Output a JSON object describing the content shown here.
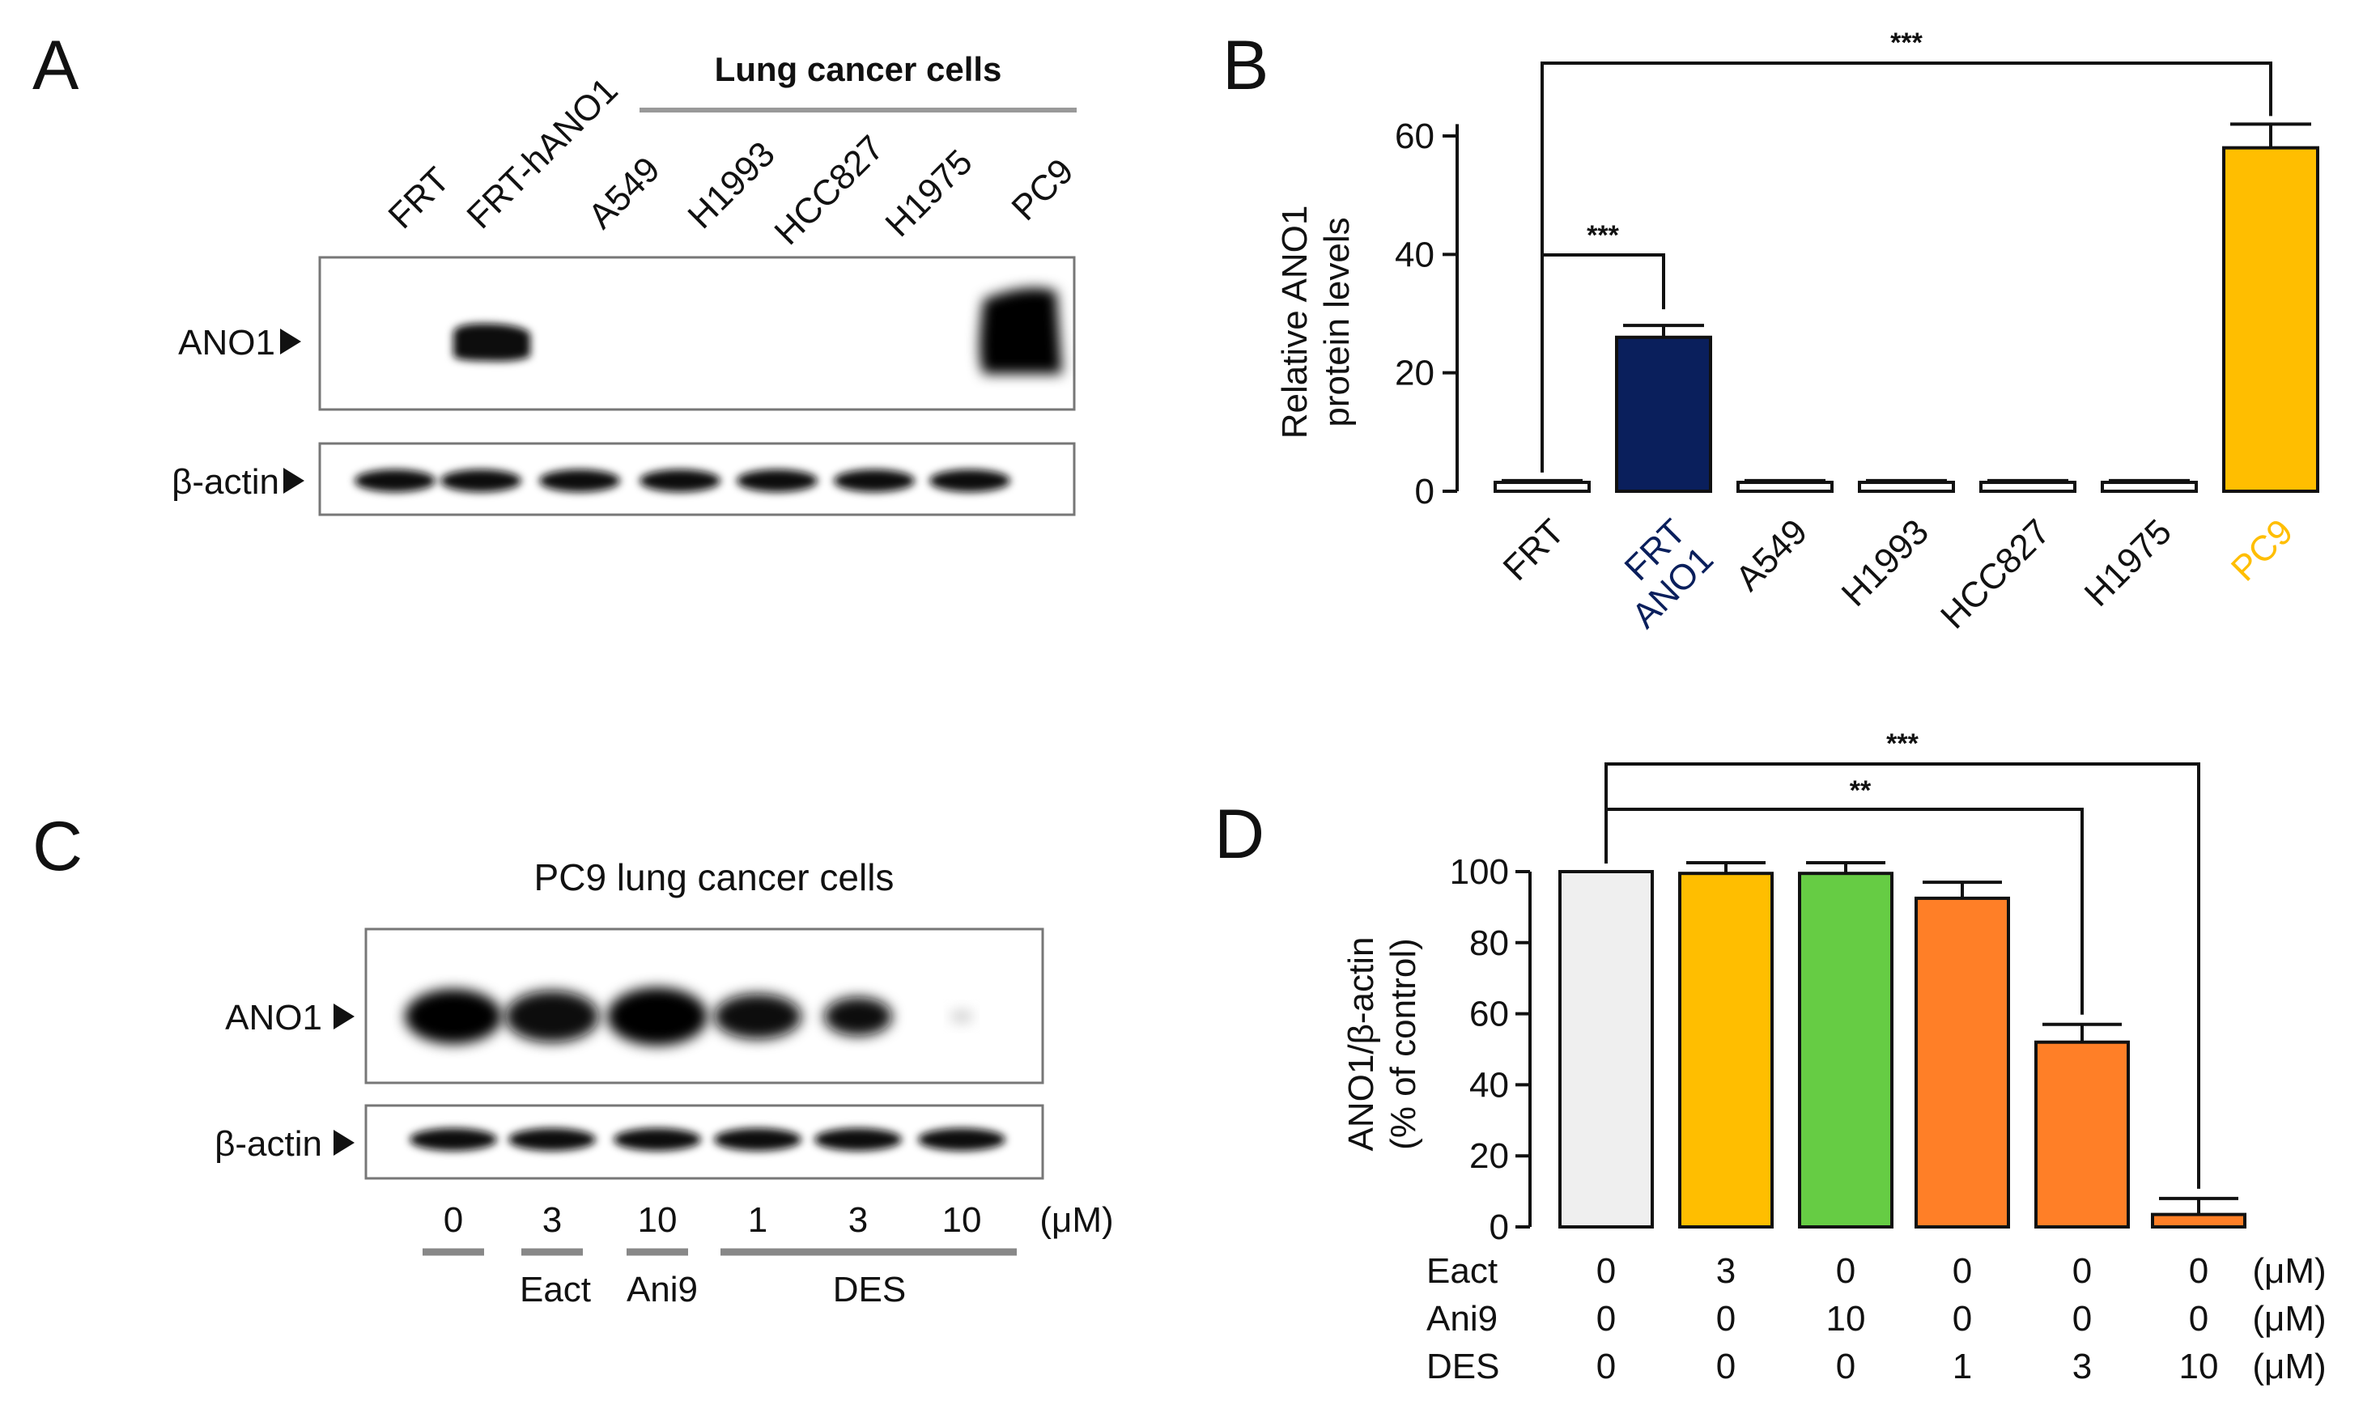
{
  "panels": {
    "A": {
      "letter": "A",
      "group_label": "Lung cancer cells",
      "lanes": [
        "FRT",
        "FRT-hANO1",
        "A549",
        "H1993",
        "HCC827",
        "H1975",
        "PC9"
      ],
      "blot_labels": [
        "ANO1",
        "β-actin"
      ]
    },
    "B": {
      "letter": "B"
    },
    "C": {
      "letter": "C",
      "title": "PC9 lung cancer cells",
      "blot_labels": [
        "ANO1",
        "β-actin"
      ],
      "doses": [
        "0",
        "3",
        "10",
        "1",
        "3",
        "10"
      ],
      "unit": "(μM)",
      "groups": [
        "Eact",
        "Ani9",
        "DES"
      ]
    },
    "D": {
      "letter": "D"
    }
  },
  "chart_data": [
    {
      "type": "bar",
      "ylabel": "Relative ANO1 protein levels",
      "ylim": [
        0,
        62
      ],
      "yticks": [
        "0",
        "20",
        "40",
        "60"
      ],
      "categories": [
        "FRT",
        "FRT ANO1",
        "A549",
        "H1993",
        "HCC827",
        "H1975",
        "PC9"
      ],
      "values": [
        1.5,
        26,
        1.5,
        1.5,
        1.5,
        1.5,
        58
      ],
      "errors": [
        0.3,
        2,
        0.3,
        0.3,
        0.3,
        0.3,
        4
      ],
      "colors": [
        "#ffffff",
        "#0a1f5c",
        "#ffffff",
        "#ffffff",
        "#ffffff",
        "#ffffff",
        "#ffbe00"
      ],
      "category_colors": [
        "#111111",
        "#0a1f5c",
        "#111111",
        "#111111",
        "#111111",
        "#111111",
        "#ffbe00"
      ],
      "significance": [
        "***",
        "***"
      ]
    },
    {
      "type": "bar",
      "ylabel": "ANO1/β-actin (% of control)",
      "ylim": [
        0,
        100
      ],
      "yticks": [
        "0",
        "20",
        "40",
        "60",
        "80",
        "100"
      ],
      "values": [
        100,
        99.5,
        99.5,
        92.5,
        52,
        3.5
      ],
      "errors": [
        0,
        3,
        3,
        4.5,
        5,
        4.5
      ],
      "colors": [
        "#efefef",
        "#ffbe00",
        "#66cc44",
        "#ff7f27",
        "#ff7f27",
        "#ff7f27"
      ],
      "table": [
        {
          "label": "Eact",
          "values": [
            "0",
            "3",
            "0",
            "0",
            "0",
            "0"
          ],
          "unit": "(μM)"
        },
        {
          "label": "Ani9",
          "values": [
            "0",
            "0",
            "10",
            "0",
            "0",
            "0"
          ],
          "unit": "(μM)"
        },
        {
          "label": "DES",
          "values": [
            "0",
            "0",
            "0",
            "1",
            "3",
            "10"
          ],
          "unit": "(μM)"
        }
      ],
      "significance": [
        "**",
        "***"
      ]
    }
  ]
}
